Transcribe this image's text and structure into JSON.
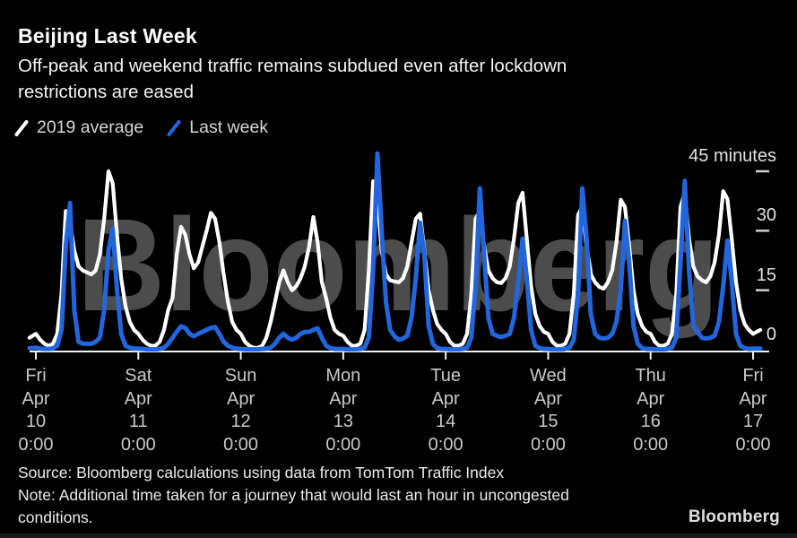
{
  "header": {
    "title": "Beijing Last Week",
    "subtitle_lines": [
      "Off-peak and weekend traffic remains subdued even after lockdown",
      "restrictions are eased"
    ]
  },
  "legend": {
    "items": [
      {
        "label": "2019 average",
        "color": "#ffffff"
      },
      {
        "label": "Last week",
        "color": "#2266dd"
      }
    ]
  },
  "chart_data": {
    "type": "line",
    "title": "Beijing Last Week",
    "ylabel": "minutes",
    "ylim": [
      0,
      50
    ],
    "grid": false,
    "legend_position": "top-left",
    "watermark": "Bloomberg",
    "yticks": [
      {
        "value": 45,
        "label": "45 minutes"
      },
      {
        "value": 30,
        "label": "30"
      },
      {
        "value": 15,
        "label": "15"
      },
      {
        "value": 0,
        "label": "0"
      }
    ],
    "x_ticks": [
      {
        "day": "Fri",
        "month": "Apr",
        "date": "10",
        "time": "0:00"
      },
      {
        "day": "Sat",
        "month": "Apr",
        "date": "11",
        "time": "0:00"
      },
      {
        "day": "Sun",
        "month": "Apr",
        "date": "12",
        "time": "0:00"
      },
      {
        "day": "Mon",
        "month": "Apr",
        "date": "13",
        "time": "0:00"
      },
      {
        "day": "Tue",
        "month": "Apr",
        "date": "14",
        "time": "0:00"
      },
      {
        "day": "Wed",
        "month": "Apr",
        "date": "15",
        "time": "0:00"
      },
      {
        "day": "Thu",
        "month": "Apr",
        "date": "16",
        "time": "0:00"
      },
      {
        "day": "Fri",
        "month": "Apr",
        "date": "17",
        "time": "0:00"
      }
    ],
    "x_unit": "hours_from_Fri_Apr_10_0:00",
    "hours_span": 168,
    "series": [
      {
        "name": "2019 average",
        "color": "#ffffff",
        "pre": [
          -1.5,
          3
        ],
        "post": [
          169.7,
          5
        ],
        "values": [
          4,
          2.5,
          1.5,
          1,
          1.5,
          4,
          14,
          35,
          32,
          25,
          21,
          20,
          19.5,
          19,
          20,
          24,
          33,
          45,
          42,
          29,
          18,
          11,
          7,
          5,
          4,
          2.5,
          1.5,
          1,
          1,
          2,
          5,
          10,
          13,
          24,
          31,
          29,
          24,
          20.5,
          22,
          26,
          30,
          34.5,
          33,
          27,
          19,
          12,
          7,
          5,
          4,
          2,
          1,
          0.5,
          0.5,
          1,
          3,
          7,
          12,
          17,
          20,
          17,
          15,
          16,
          18,
          21,
          26,
          33.5,
          27,
          17,
          13,
          8,
          5,
          4,
          3.5,
          2,
          1,
          1,
          1.5,
          5,
          20,
          42.5,
          38,
          25,
          19,
          17.5,
          17.2,
          17,
          18,
          21,
          27,
          33,
          34.3,
          25,
          15,
          10,
          6.5,
          5,
          4,
          2,
          1,
          1,
          1.5,
          4,
          14,
          33,
          35,
          26,
          20,
          18,
          17,
          16.8,
          18,
          21,
          28,
          37,
          39.6,
          28,
          16,
          9,
          6,
          4.5,
          4,
          2,
          1,
          1,
          1.5,
          4,
          14,
          34,
          36,
          26,
          19,
          17,
          15.8,
          15.4,
          17,
          20,
          27,
          37.8,
          36,
          26,
          15,
          9,
          6,
          4.5,
          4,
          2,
          1,
          1,
          1.5,
          4,
          14,
          36,
          39.5,
          28,
          21,
          18.5,
          17.5,
          17,
          18.5,
          22,
          29,
          40,
          38,
          28,
          17,
          10,
          6.5,
          5,
          4
        ]
      },
      {
        "name": "Last week",
        "color": "#2266dd",
        "pre": [
          -1.5,
          0.4
        ],
        "post": [
          169.7,
          0.3
        ],
        "values": [
          0.5,
          0.3,
          0.2,
          0.2,
          0.3,
          1,
          5,
          26,
          37,
          10,
          2,
          1.5,
          1.5,
          1.5,
          2,
          3,
          10,
          25,
          30.5,
          15,
          4,
          1,
          0.5,
          0.3,
          0.3,
          0.2,
          0.1,
          0.1,
          0.1,
          0.2,
          0.5,
          1.5,
          3,
          4.5,
          5.9,
          5.5,
          4,
          3.4,
          4,
          4.5,
          5,
          5.5,
          5.7,
          4,
          2,
          1,
          0.5,
          0.3,
          0.2,
          0.1,
          0.1,
          0.1,
          0.1,
          0.2,
          0.3,
          0.5,
          1.5,
          3,
          4,
          3,
          2.5,
          3,
          4,
          4.5,
          4.5,
          5,
          5.4,
          3,
          1,
          0.4,
          0.2,
          0.2,
          0.2,
          0.1,
          0.1,
          0.1,
          0.2,
          0.5,
          3,
          20,
          49.5,
          30,
          12,
          5,
          3.4,
          2.5,
          2.8,
          3.5,
          8,
          18,
          32,
          24,
          6,
          1.5,
          0.4,
          0.2,
          0.2,
          0.1,
          0.1,
          0.1,
          0.2,
          0.5,
          3,
          16,
          40.7,
          24,
          8,
          4,
          3.5,
          3.2,
          3.5,
          4,
          8,
          17,
          28,
          18,
          5,
          1,
          0.4,
          0.2,
          0.2,
          0.1,
          0.1,
          0.1,
          0.2,
          0.5,
          2.5,
          14,
          40.7,
          28,
          9,
          4,
          3,
          2.8,
          3,
          4,
          7,
          15,
          32.5,
          22,
          6,
          1.5,
          0.4,
          0.2,
          0.2,
          0.1,
          0.1,
          0.1,
          0.2,
          0.5,
          3,
          22,
          42.6,
          20,
          6,
          4.5,
          3,
          2.8,
          3,
          3.5,
          7,
          16,
          27.5,
          17,
          4,
          1,
          0.4,
          0.2,
          0.3
        ]
      }
    ]
  },
  "footer": {
    "source": "Source: Bloomberg calculations using data from TomTom Traffic Index",
    "note_lines": [
      "Note: Additional time taken for a journey that would last an hour in uncongested",
      "conditions."
    ],
    "logo": "Bloomberg"
  }
}
